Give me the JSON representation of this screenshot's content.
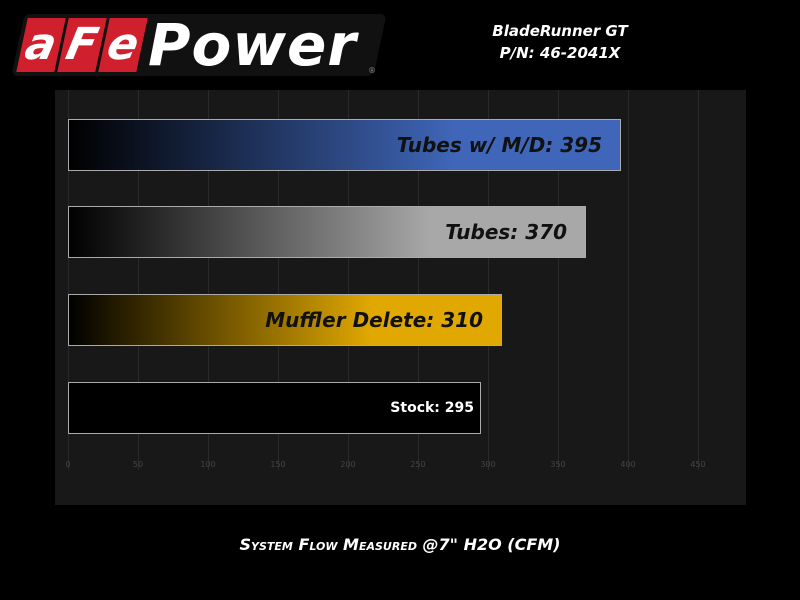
{
  "logo": {
    "text": "aFePower",
    "red_letters": [
      "a",
      "F",
      "e"
    ],
    "white_text": "Power",
    "reg": "®"
  },
  "chart_data": {
    "type": "bar",
    "orientation": "horizontal",
    "title": "BladeRunner GT",
    "subtitle": "P/N: 46-2041X",
    "xlabel": "System Flow Measured @7\" H2O (CFM)",
    "xlim": [
      0,
      480
    ],
    "xticks": [
      0,
      50,
      100,
      150,
      200,
      250,
      300,
      350,
      400,
      450
    ],
    "grid": true,
    "bars": [
      {
        "label": "Tubes w/ M/D: 395",
        "value": 395,
        "color": "#3f66b8"
      },
      {
        "label": "Tubes: 370",
        "value": 370,
        "color": "#a8a8a8"
      },
      {
        "label": "Muffler Delete: 310",
        "value": 310,
        "color": "#e0a800"
      },
      {
        "label": "Stock: 295",
        "value": 295,
        "color": "#000000"
      }
    ]
  }
}
